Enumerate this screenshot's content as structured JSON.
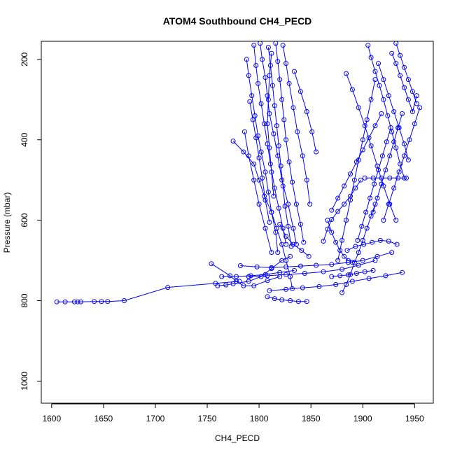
{
  "chart_data": {
    "type": "scatter",
    "title": "ATOM4 Southbound CH4_PECD",
    "xlabel": "CH4_PECD",
    "ylabel": "Pressure (mbar)",
    "xlim": [
      1590,
      1968
    ],
    "ylim": [
      1055,
      155
    ],
    "y_reversed": true,
    "x_ticks": [
      1600,
      1650,
      1700,
      1750,
      1800,
      1850,
      1900,
      1950
    ],
    "y_ticks": [
      200,
      400,
      600,
      800,
      1000
    ],
    "grid": false,
    "legend": "none",
    "style": {
      "color": "#0000ff",
      "marker": "open-circle",
      "lines": true
    },
    "series": [
      {
        "x": [
          1605,
          1613,
          1622,
          1625,
          1628,
          1641,
          1648,
          1654,
          1670,
          1712,
          1758,
          1781
        ],
        "y": [
          803,
          803,
          803,
          803,
          803,
          802,
          802,
          802,
          800,
          767,
          757,
          752
        ]
      },
      {
        "x": [
          1754,
          1772,
          1778,
          1785,
          1795,
          1808,
          1820
        ],
        "y": [
          708,
          738,
          752,
          763,
          763,
          750,
          740
        ]
      },
      {
        "x": [
          1760,
          1768,
          1775,
          1790,
          1802,
          1812,
          1822,
          1830
        ],
        "y": [
          763,
          761,
          758,
          752,
          740,
          720,
          700,
          690
        ]
      },
      {
        "x": [
          1775,
          1785,
          1795,
          1800,
          1805,
          1812,
          1817,
          1822,
          1826,
          1830,
          1832
        ],
        "y": [
          403,
          430,
          460,
          500,
          540,
          580,
          620,
          660,
          700,
          740,
          770
        ]
      },
      {
        "x": [
          1788,
          1790,
          1793,
          1796,
          1799,
          1802,
          1806,
          1809,
          1812,
          1816,
          1818
        ],
        "y": [
          200,
          240,
          290,
          340,
          390,
          430,
          480,
          530,
          580,
          630,
          680
        ]
      },
      {
        "x": [
          1795,
          1797,
          1799,
          1802,
          1805,
          1808,
          1811,
          1815,
          1819,
          1823,
          1826
        ],
        "y": [
          165,
          215,
          260,
          310,
          360,
          410,
          460,
          520,
          570,
          620,
          660
        ]
      },
      {
        "x": [
          1801,
          1803,
          1806,
          1808,
          1810,
          1814,
          1818,
          1822,
          1828,
          1833,
          1836
        ],
        "y": [
          160,
          200,
          245,
          290,
          335,
          385,
          440,
          500,
          560,
          620,
          660
        ]
      },
      {
        "x": [
          1809,
          1811,
          1813,
          1815,
          1817,
          1819,
          1821,
          1823,
          1825,
          1828,
          1831
        ],
        "y": [
          170,
          215,
          265,
          315,
          365,
          415,
          465,
          515,
          565,
          615,
          665
        ]
      },
      {
        "x": [
          1816,
          1818,
          1820,
          1822,
          1824,
          1826,
          1829,
          1832,
          1836,
          1840,
          1843
        ],
        "y": [
          160,
          205,
          250,
          300,
          350,
          400,
          455,
          505,
          560,
          610,
          655
        ]
      },
      {
        "x": [
          1823,
          1826,
          1829,
          1833,
          1837,
          1842,
          1846,
          1849
        ],
        "y": [
          165,
          210,
          260,
          320,
          380,
          440,
          500,
          560
        ]
      },
      {
        "x": [
          1791,
          1794,
          1797,
          1800,
          1803,
          1806,
          1810
        ],
        "y": [
          305,
          350,
          395,
          445,
          495,
          550,
          605
        ]
      },
      {
        "x": [
          1786,
          1790,
          1795,
          1800,
          1806,
          1812
        ],
        "y": [
          380,
          440,
          500,
          560,
          620,
          680
        ]
      },
      {
        "x": [
          1812,
          1810,
          1809,
          1808,
          1810,
          1812,
          1814
        ],
        "y": [
          185,
          240,
          300,
          360,
          420,
          480,
          540
        ]
      },
      {
        "x": [
          1834,
          1840,
          1846,
          1851,
          1855
        ],
        "y": [
          230,
          280,
          330,
          380,
          430
        ]
      },
      {
        "x": [
          1820,
          1826,
          1833,
          1841,
          1848
        ],
        "y": [
          610,
          640,
          660,
          675,
          690
        ]
      },
      {
        "x": [
          1782,
          1798,
          1812,
          1826,
          1840,
          1855,
          1870,
          1886,
          1900,
          1914,
          1928
        ],
        "y": [
          713,
          716,
          718,
          716,
          714,
          712,
          710,
          705,
          700,
          690,
          680
        ]
      },
      {
        "x": [
          1790,
          1808,
          1826,
          1844,
          1862,
          1880,
          1896,
          1912
        ],
        "y": [
          740,
          738,
          735,
          732,
          728,
          722,
          712,
          700
        ]
      },
      {
        "x": [
          1810,
          1826,
          1842,
          1858,
          1874,
          1890,
          1906,
          1922,
          1938
        ],
        "y": [
          775,
          772,
          768,
          765,
          760,
          752,
          745,
          738,
          730
        ]
      },
      {
        "x": [
          1808,
          1815,
          1822,
          1830,
          1838,
          1846
        ],
        "y": [
          790,
          795,
          798,
          800,
          802,
          802
        ]
      },
      {
        "x": [
          1764,
          1778,
          1792,
          1806,
          1820,
          1834
        ],
        "y": [
          740,
          740,
          738,
          735,
          730,
          725
        ]
      },
      {
        "x": [
          1862,
          1866,
          1870,
          1876,
          1882,
          1888,
          1893,
          1898
        ],
        "y": [
          652,
          622,
          598,
          578,
          560,
          540,
          520,
          500
        ]
      },
      {
        "x": [
          1866,
          1870,
          1874,
          1878,
          1882,
          1886,
          1890
        ],
        "y": [
          600,
          630,
          655,
          675,
          690,
          700,
          705
        ]
      },
      {
        "x": [
          1870,
          1876,
          1882,
          1888,
          1894,
          1900,
          1906,
          1912,
          1918
        ],
        "y": [
          575,
          545,
          515,
          485,
          455,
          425,
          395,
          365,
          335
        ]
      },
      {
        "x": [
          1876,
          1880,
          1884,
          1888,
          1892,
          1896,
          1900,
          1904,
          1908,
          1912
        ],
        "y": [
          700,
          650,
          600,
          550,
          500,
          450,
          400,
          350,
          300,
          250
        ]
      },
      {
        "x": [
          1880,
          1884,
          1888,
          1892,
          1896,
          1900,
          1904,
          1908,
          1912
        ],
        "y": [
          780,
          760,
          735,
          705,
          680,
          650,
          620,
          590,
          560
        ]
      },
      {
        "x": [
          1884,
          1890,
          1896,
          1902,
          1908,
          1914,
          1920,
          1926,
          1932
        ],
        "y": [
          235,
          275,
          320,
          365,
          415,
          465,
          515,
          560,
          600
        ]
      },
      {
        "x": [
          1895,
          1899,
          1903,
          1907,
          1911,
          1915,
          1919,
          1923,
          1927
        ],
        "y": [
          650,
          615,
          580,
          545,
          510,
          475,
          440,
          405,
          370
        ]
      },
      {
        "x": [
          1905,
          1908,
          1912,
          1916,
          1920,
          1924,
          1928,
          1932,
          1936,
          1940
        ],
        "y": [
          165,
          195,
          230,
          265,
          300,
          340,
          380,
          420,
          460,
          495
        ]
      },
      {
        "x": [
          1910,
          1914,
          1918,
          1922,
          1926,
          1930,
          1934,
          1938
        ],
        "y": [
          580,
          545,
          510,
          475,
          440,
          405,
          370,
          335
        ]
      },
      {
        "x": [
          1915,
          1920,
          1925,
          1930,
          1935,
          1940,
          1944
        ],
        "y": [
          210,
          250,
          290,
          330,
          370,
          410,
          450
        ]
      },
      {
        "x": [
          1902,
          1910,
          1918,
          1926,
          1934,
          1942
        ],
        "y": [
          495,
          495,
          495,
          495,
          495,
          495
        ]
      },
      {
        "x": [
          1920,
          1925,
          1930,
          1935,
          1940,
          1945,
          1950,
          1955
        ],
        "y": [
          600,
          560,
          520,
          480,
          440,
          400,
          360,
          320
        ]
      },
      {
        "x": [
          1928,
          1932,
          1936,
          1940,
          1944,
          1948,
          1952
        ],
        "y": [
          185,
          210,
          240,
          270,
          300,
          330,
          290
        ]
      },
      {
        "x": [
          1932,
          1936,
          1940,
          1944,
          1948,
          1952
        ],
        "y": [
          160,
          190,
          220,
          250,
          280,
          310
        ]
      },
      {
        "x": [
          1885,
          1893,
          1901,
          1909,
          1917,
          1925,
          1933
        ],
        "y": [
          675,
          665,
          660,
          655,
          650,
          652,
          660
        ]
      },
      {
        "x": [
          1870,
          1878,
          1886,
          1894,
          1902,
          1910
        ],
        "y": [
          740,
          738,
          736,
          732,
          728,
          725
        ]
      }
    ]
  }
}
